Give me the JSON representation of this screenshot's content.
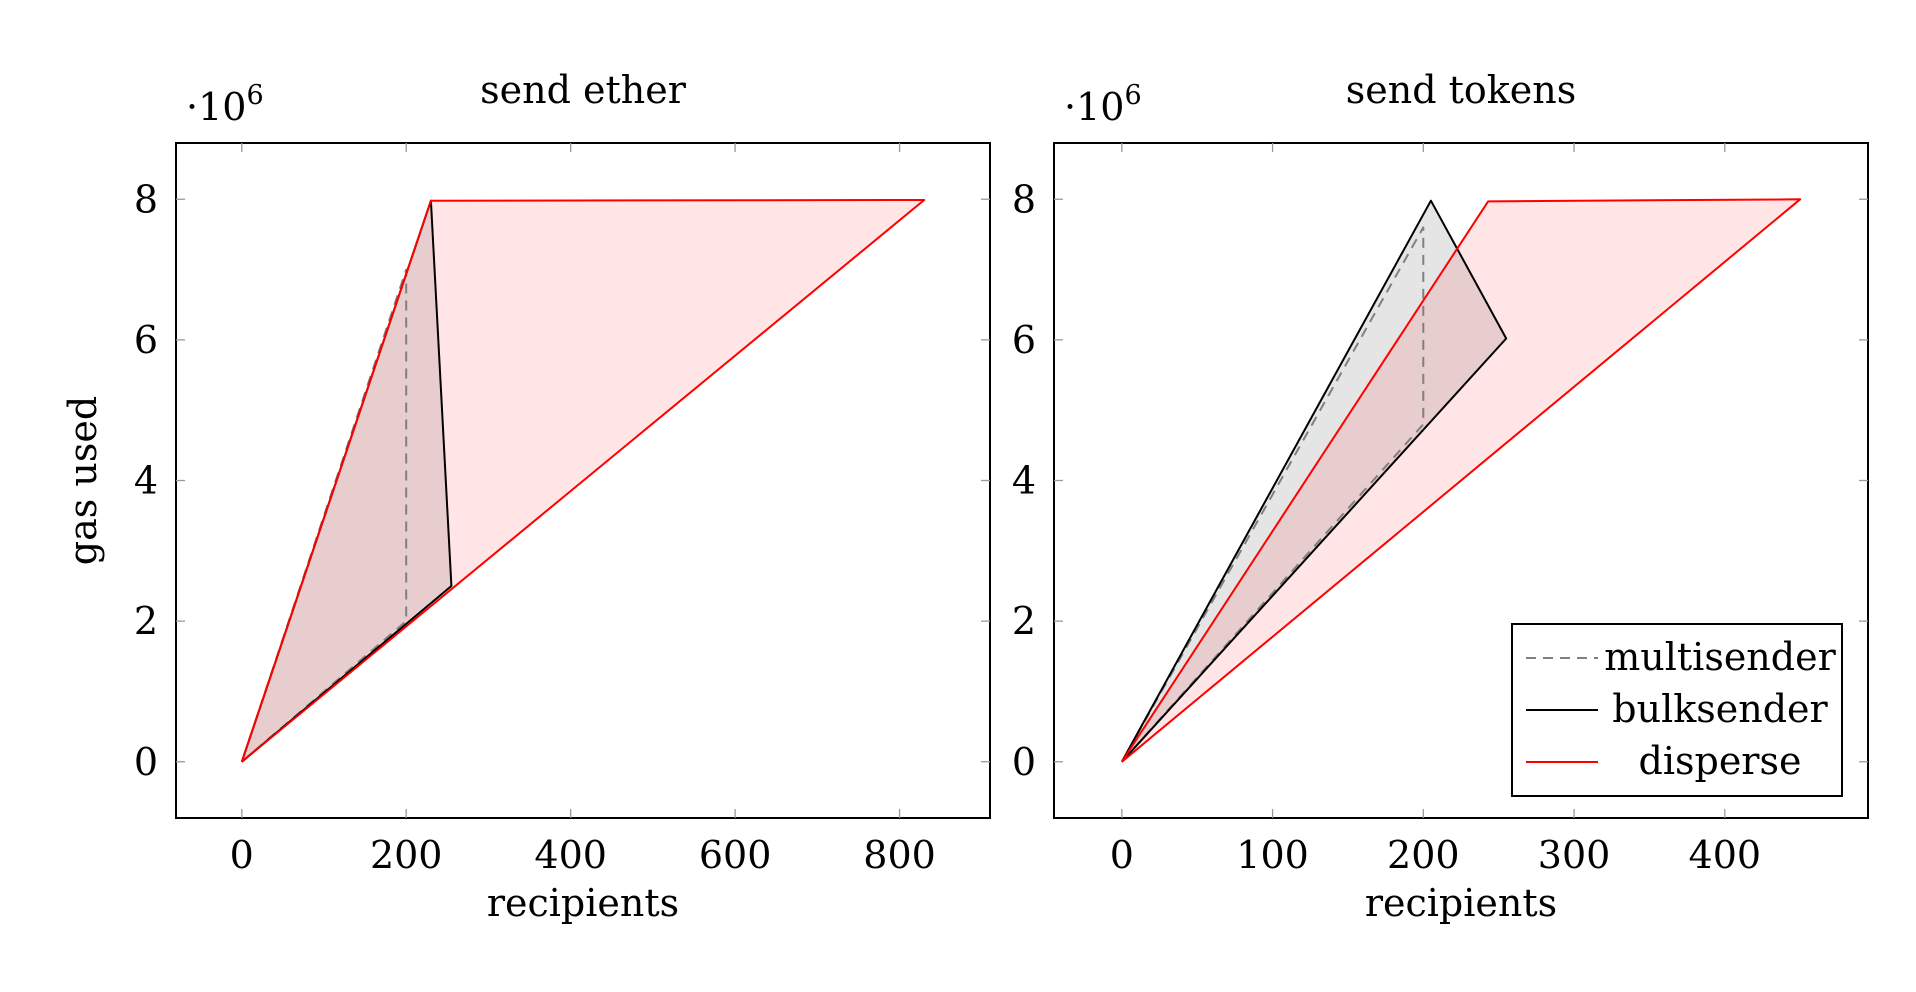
{
  "chart_data": [
    {
      "type": "area",
      "title": "send ether",
      "xlabel": "recipients",
      "ylabel": "gas used",
      "y_scale_label": "·10",
      "y_scale_exp": "6",
      "xlim": [
        -80,
        910
      ],
      "ylim": [
        -0.8,
        8.8
      ],
      "xticks": [
        0,
        200,
        400,
        600,
        800
      ],
      "yticks": [
        0,
        2,
        4,
        6,
        8
      ],
      "grid": false,
      "legend": null,
      "series": [
        {
          "name": "multisender",
          "color": "#808080",
          "fill": null,
          "dashed": true,
          "points": [
            [
              0,
              0
            ],
            [
              200,
              2.0
            ],
            [
              200,
              7.0
            ],
            [
              0,
              0
            ]
          ]
        },
        {
          "name": "bulksender",
          "color": "#000000",
          "fill": "#000000",
          "fill_opacity": 0.1,
          "dashed": false,
          "points": [
            [
              0,
              0
            ],
            [
              230,
              7.98
            ],
            [
              255,
              2.5
            ],
            [
              0,
              0
            ]
          ]
        },
        {
          "name": "disperse",
          "color": "#ff0000",
          "fill": "#ff0000",
          "fill_opacity": 0.1,
          "dashed": false,
          "points": [
            [
              0,
              0
            ],
            [
              230,
              7.98
            ],
            [
              830,
              7.99
            ],
            [
              0,
              0
            ]
          ]
        }
      ]
    },
    {
      "type": "area",
      "title": "send tokens",
      "xlabel": "recipients",
      "ylabel": "",
      "y_scale_label": "·10",
      "y_scale_exp": "6",
      "xlim": [
        -45,
        495
      ],
      "ylim": [
        -0.8,
        8.8
      ],
      "xticks": [
        0,
        100,
        200,
        300,
        400
      ],
      "yticks": [
        0,
        2,
        4,
        6,
        8
      ],
      "grid": false,
      "legend": "bottom-right",
      "series": [
        {
          "name": "multisender",
          "color": "#808080",
          "fill": null,
          "dashed": true,
          "points": [
            [
              0,
              0
            ],
            [
              200,
              4.8
            ],
            [
              200,
              7.6
            ],
            [
              0,
              0
            ]
          ]
        },
        {
          "name": "bulksender",
          "color": "#000000",
          "fill": "#000000",
          "fill_opacity": 0.1,
          "dashed": false,
          "points": [
            [
              0,
              0
            ],
            [
              205,
              7.98
            ],
            [
              255,
              6.02
            ],
            [
              0,
              0
            ]
          ]
        },
        {
          "name": "disperse",
          "color": "#ff0000",
          "fill": "#ff0000",
          "fill_opacity": 0.1,
          "dashed": false,
          "points": [
            [
              0,
              0
            ],
            [
              243,
              7.97
            ],
            [
              450,
              8.0
            ],
            [
              0,
              0
            ]
          ]
        }
      ]
    }
  ]
}
